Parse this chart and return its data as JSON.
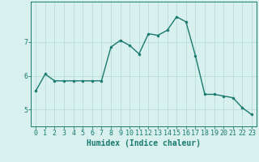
{
  "x": [
    0,
    1,
    2,
    3,
    4,
    5,
    6,
    7,
    8,
    9,
    10,
    11,
    12,
    13,
    14,
    15,
    16,
    17,
    18,
    19,
    20,
    21,
    22,
    23
  ],
  "y": [
    5.55,
    6.05,
    5.85,
    5.85,
    5.85,
    5.85,
    5.85,
    5.85,
    6.85,
    7.05,
    6.9,
    6.65,
    7.25,
    7.2,
    7.35,
    7.75,
    7.6,
    6.6,
    5.45,
    5.45,
    5.4,
    5.35,
    5.05,
    4.85
  ],
  "line_color": "#1a7a6e",
  "marker": "o",
  "markersize": 2.0,
  "linewidth": 1.0,
  "background_color": "#d8f0ee",
  "grid_color": "#b8dcd8",
  "xlabel": "Humidex (Indice chaleur)",
  "xlabel_fontsize": 7,
  "tick_fontsize": 6,
  "ylim": [
    4.5,
    8.2
  ],
  "xlim": [
    -0.5,
    23.5
  ],
  "yticks": [
    5,
    6,
    7
  ],
  "xticks": [
    0,
    1,
    2,
    3,
    4,
    5,
    6,
    7,
    8,
    9,
    10,
    11,
    12,
    13,
    14,
    15,
    16,
    17,
    18,
    19,
    20,
    21,
    22,
    23
  ]
}
